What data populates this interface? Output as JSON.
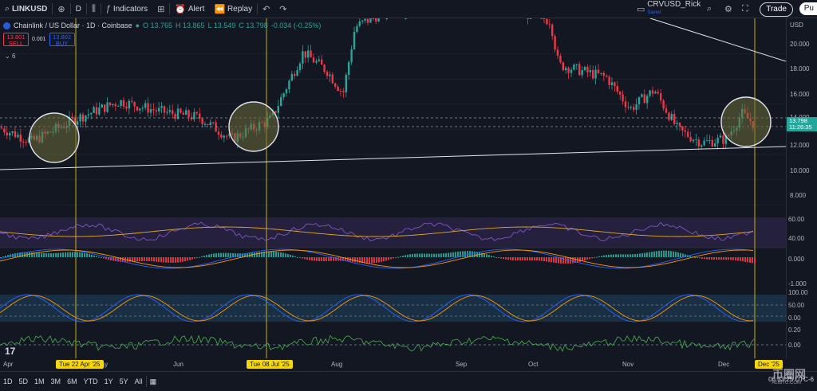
{
  "toolbar": {
    "symbol": "LINKUSD",
    "interval": "D",
    "indicators_label": "Indicators",
    "alert_label": "Alert",
    "replay_label": "Replay",
    "layout_name": "CRVUSD_Rick",
    "layout_status": "Saved",
    "trade_label": "Trade",
    "publish_label": "Pu"
  },
  "legend": {
    "title": "Chainlink / US Dollar · 1D · Coinbase",
    "open": "O 13.765",
    "high": "H 13.865",
    "low": "L 13.549",
    "close": "C 13.798",
    "change": "-0.034 (-0.25%)",
    "sell_price": "13.801",
    "sell_label": "SELL",
    "spread": "0.001",
    "buy_price": "13.802",
    "buy_label": "BUY",
    "indicator_count": "6"
  },
  "price_axis": {
    "currency": "USD",
    "ticks": [
      "20.000",
      "18.000",
      "16.000",
      "14.000",
      "12.000",
      "10.000",
      "8.000"
    ],
    "current_price": "13.798",
    "countdown": "11:26:35",
    "rsi_ticks": [
      "60.00",
      "40.00"
    ],
    "macd_ticks": [
      "0.000",
      "-1.000"
    ],
    "stoch_ticks": [
      "100.00",
      "50.00",
      "0.00"
    ],
    "osc_ticks": [
      "0.20",
      "0.00"
    ]
  },
  "time_axis": {
    "labels": [
      "Apr",
      "May",
      "Jun",
      "Aug",
      "Sep",
      "Oct",
      "Nov",
      "Dec"
    ],
    "crosshair_1": "Tue 22 Apr '25",
    "crosshair_2": "Tue 08 Jul '25",
    "crosshair_3": "Dec '25"
  },
  "bottom": {
    "timeframes": [
      "1D",
      "5D",
      "1M",
      "3M",
      "6M",
      "YTD",
      "1Y",
      "5Y",
      "All"
    ],
    "clock": "06:33:25 UTC-6",
    "watermark": "币圈网",
    "watermark_url": "ALIBTC.COM"
  },
  "colors": {
    "up": "#26a69a",
    "down": "#f23645",
    "crosshair": "#f5d60a",
    "circle_fill": "#6b6b3a"
  }
}
